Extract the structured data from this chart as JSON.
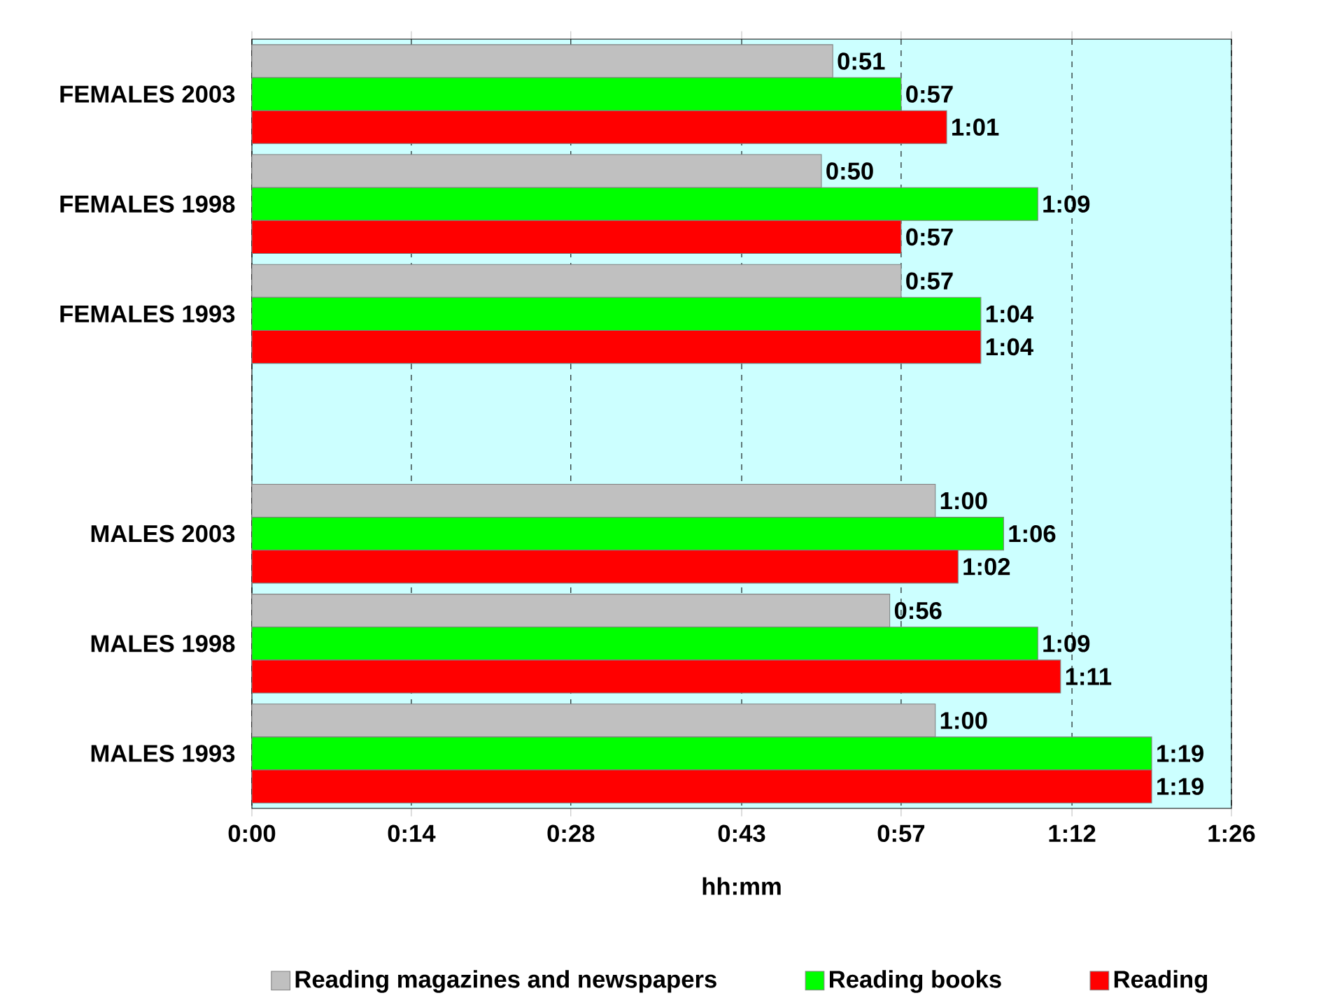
{
  "chart_data": {
    "type": "bar",
    "orientation": "horizontal",
    "xlabel": "hh:mm",
    "categories": [
      "FEMALES 2003",
      "FEMALES 1998",
      "FEMALES 1993",
      null,
      "MALES 2003",
      "MALES 1998",
      "MALES 1993"
    ],
    "series": [
      {
        "name": "Reading",
        "color": "#ff0000",
        "values": [
          61,
          57,
          64,
          null,
          62,
          71,
          79
        ],
        "value_labels": [
          "1:01",
          "0:57",
          "1:04",
          null,
          "1:02",
          "1:11",
          "1:19"
        ]
      },
      {
        "name": "Reading books",
        "color": "#00ff00",
        "values": [
          57,
          69,
          64,
          null,
          66,
          69,
          79
        ],
        "value_labels": [
          "0:57",
          "1:09",
          "1:04",
          null,
          "1:06",
          "1:09",
          "1:19"
        ]
      },
      {
        "name": "Reading magazines and newspapers",
        "color": "#c0c0c0",
        "values": [
          51,
          50,
          57,
          null,
          60,
          56,
          60
        ],
        "value_labels": [
          "0:51",
          "0:50",
          "0:57",
          null,
          "1:00",
          "0:56",
          "1:00"
        ]
      }
    ],
    "xlim": [
      0,
      86
    ],
    "xticks": [
      {
        "value": 0,
        "label": "0:00"
      },
      {
        "value": 14,
        "label": "0:14"
      },
      {
        "value": 28,
        "label": "0:28"
      },
      {
        "value": 43,
        "label": "0:43"
      },
      {
        "value": 57,
        "label": "0:57"
      },
      {
        "value": 72,
        "label": "1:12"
      },
      {
        "value": 86,
        "label": "1:26"
      }
    ],
    "grid": "x",
    "legend": "bottom"
  }
}
